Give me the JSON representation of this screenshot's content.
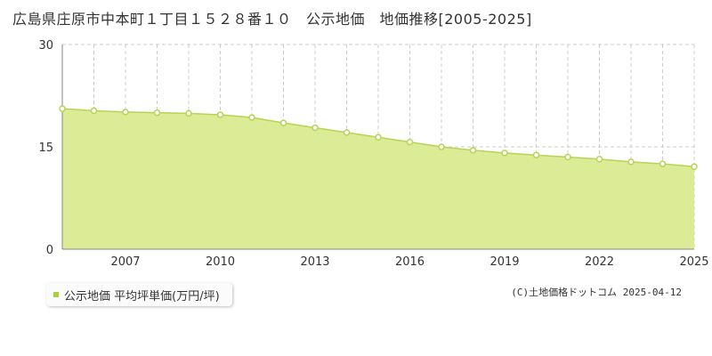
{
  "title": "広島県庄原市中本町１丁目１５２８番１０　公示地価　地価推移[2005-2025]",
  "legend_label": "公示地価 平均坪単価(万円/坪)",
  "copyright": "(C)土地価格ドットコム 2025-04-12",
  "colors": {
    "fill": "#dcec96",
    "line": "#b6d454",
    "marker_stroke": "#b6d454",
    "marker_fill": "#ffffff",
    "legend_swatch": "#a9cf3f"
  },
  "chart_data": {
    "type": "area",
    "title": "",
    "xlabel": "",
    "ylabel": "",
    "x": [
      2005,
      2006,
      2007,
      2008,
      2009,
      2010,
      2011,
      2012,
      2013,
      2014,
      2015,
      2016,
      2017,
      2018,
      2019,
      2020,
      2021,
      2022,
      2023,
      2024,
      2025
    ],
    "series": [
      {
        "values": [
          20.6,
          20.3,
          20.1,
          20.0,
          19.9,
          19.7,
          19.3,
          18.5,
          17.8,
          17.1,
          16.4,
          15.7,
          15.0,
          14.5,
          14.1,
          13.8,
          13.5,
          13.2,
          12.8,
          12.5,
          12.1
        ]
      }
    ],
    "xticks": [
      "2007",
      "2010",
      "2013",
      "2016",
      "2019",
      "2022",
      "2025"
    ],
    "yticks": [
      "0",
      "15",
      "30"
    ],
    "xlim": [
      2005,
      2025
    ],
    "ylim": [
      0,
      30
    ],
    "grid": true,
    "legend_position": "bottom-left"
  }
}
